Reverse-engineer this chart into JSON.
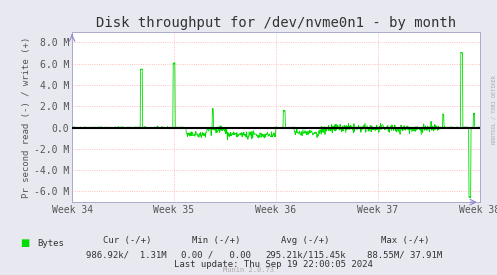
{
  "title": "Disk throughput for /dev/nvme0n1 - by month",
  "ylabel": "Pr second read (-) / write (+)",
  "background_color": "#e8e8f0",
  "plot_background": "#ffffff",
  "grid_color": "#ffaaaa",
  "line_color": "#00dd00",
  "zero_line_color": "#000000",
  "ylim": [
    -7000000,
    9000000
  ],
  "yticks": [
    -6000000,
    -4000000,
    -2000000,
    0,
    2000000,
    4000000,
    6000000,
    8000000
  ],
  "ytick_labels": [
    "-6.0 M",
    "-4.0 M",
    "-2.0 M",
    "0.0",
    "2.0 M",
    "4.0 M",
    "6.0 M",
    "8.0 M"
  ],
  "xtick_labels": [
    "Week 34",
    "Week 35",
    "Week 36",
    "Week 37",
    "Week 38"
  ],
  "legend_label": "Bytes",
  "cur_label": "Cur (-/+)",
  "cur_val": "986.92k/  1.31M",
  "min_label": "Min (-/+)",
  "min_val": "0.00 /   0.00",
  "avg_label": "Avg (-/+)",
  "avg_val": "295.21k/115.45k",
  "max_label": "Max (-/+)",
  "max_val": "88.55M/ 37.91M",
  "last_update": "Last update: Thu Sep 19 22:00:05 2024",
  "munin_version": "Munin 2.0.73",
  "rrdtool_label": "RRDTOOL / TOBI OETIKER",
  "title_fontsize": 10,
  "axis_fontsize": 6.5,
  "tick_fontsize": 7,
  "footer_fontsize": 6.5
}
